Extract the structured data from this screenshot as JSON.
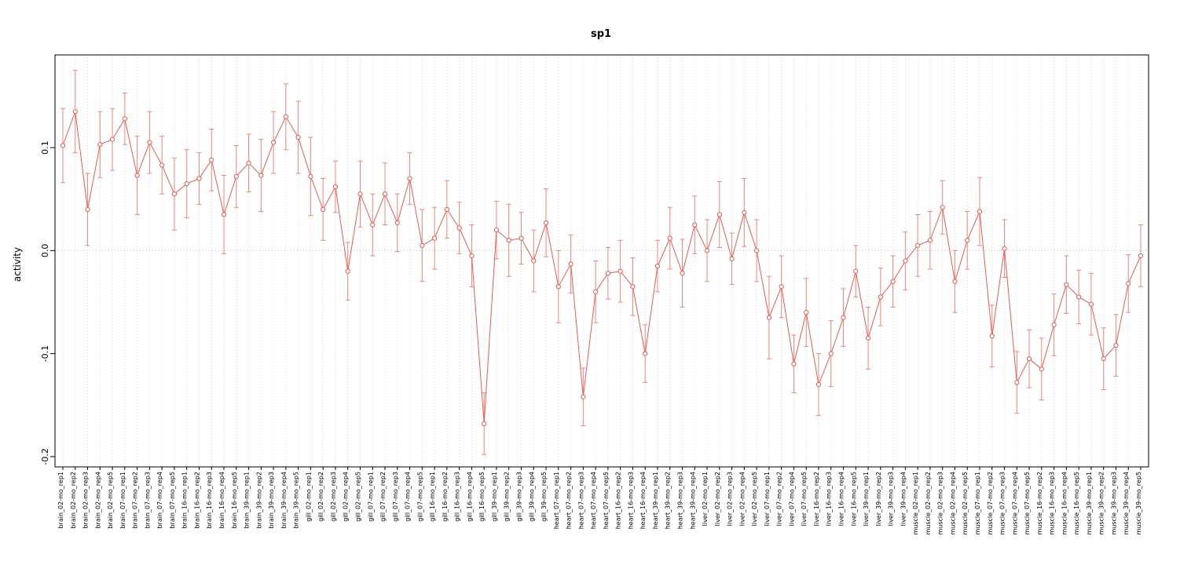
{
  "chart_data": {
    "type": "line",
    "title": "sp1",
    "xlabel": "",
    "ylabel": "activity",
    "ylim": [
      -0.21,
      0.19
    ],
    "yticks": [
      -0.2,
      -0.1,
      0.0,
      0.1
    ],
    "ytick_labels": [
      "-0.2",
      "-0.1",
      "0.0",
      "0.1"
    ],
    "grid": "vertical-dotted-per-category",
    "zero_line": 0.0,
    "legend_position": "none",
    "colors": {
      "series": "#ef5a50",
      "error_bar": "#f5847c",
      "grid": "#d8d8d8",
      "zero_line": "#c8c8c8",
      "axis": "#000000",
      "background": "#ffffff"
    },
    "categories": [
      "brain_02-mo_rep1",
      "brain_02-mo_rep2",
      "brain_02-mo_rep3",
      "brain_02-mo_rep4",
      "brain_02-mo_rep5",
      "brain_07-mo_rep1",
      "brain_07-mo_rep2",
      "brain_07-mo_rep3",
      "brain_07-mo_rep4",
      "brain_07-mo_rep5",
      "brain_16-mo_rep1",
      "brain_16-mo_rep2",
      "brain_16-mo_rep3",
      "brain_16-mo_rep4",
      "brain_16-mo_rep5",
      "brain_39-mo_rep1",
      "brain_39-mo_rep2",
      "brain_39-mo_rep3",
      "brain_39-mo_rep4",
      "brain_39-mo_rep5",
      "gill_02-mo_rep1",
      "gill_02-mo_rep2",
      "gill_02-mo_rep3",
      "gill_02-mo_rep4",
      "gill_02-mo_rep5",
      "gill_07-mo_rep1",
      "gill_07-mo_rep2",
      "gill_07-mo_rep3",
      "gill_07-mo_rep4",
      "gill_07-mo_rep5",
      "gill_16-mo_rep1",
      "gill_16-mo_rep2",
      "gill_16-mo_rep3",
      "gill_16-mo_rep4",
      "gill_16-mo_rep5",
      "gill_39-mo_rep1",
      "gill_39-mo_rep2",
      "gill_39-mo_rep3",
      "gill_39-mo_rep4",
      "gill_39-mo_rep5",
      "heart_07-mo_rep1",
      "heart_07-mo_rep2",
      "heart_07-mo_rep3",
      "heart_07-mo_rep4",
      "heart_07-mo_rep5",
      "heart_16-mo_rep2",
      "heart_16-mo_rep3",
      "heart_16-mo_rep4",
      "heart_39-mo_rep1",
      "heart_39-mo_rep2",
      "heart_39-mo_rep3",
      "heart_39-mo_rep4",
      "liver_02-mo_rep1",
      "liver_02-mo_rep2",
      "liver_02-mo_rep3",
      "liver_02-mo_rep4",
      "liver_02-mo_rep5",
      "liver_07-mo_rep1",
      "liver_07-mo_rep2",
      "liver_07-mo_rep4",
      "liver_07-mo_rep5",
      "liver_16-mo_rep2",
      "liver_16-mo_rep3",
      "liver_16-mo_rep4",
      "liver_16-mo_rep5",
      "liver_39-mo_rep1",
      "liver_39-mo_rep2",
      "liver_39-mo_rep3",
      "liver_39-mo_rep4",
      "muscle_02-mo_rep1",
      "muscle_02-mo_rep2",
      "muscle_02-mo_rep3",
      "muscle_02-mo_rep4",
      "muscle_02-mo_rep5",
      "muscle_07-mo_rep1",
      "muscle_07-mo_rep2",
      "muscle_07-mo_rep3",
      "muscle_07-mo_rep4",
      "muscle_07-mo_rep5",
      "muscle_16-mo_rep2",
      "muscle_16-mo_rep3",
      "muscle_16-mo_rep4",
      "muscle_16-mo_rep5",
      "muscle_39-mo_rep1",
      "muscle_39-mo_rep2",
      "muscle_39-mo_rep3",
      "muscle_39-mo_rep4",
      "muscle_39-mo_rep5"
    ],
    "values": [
      0.102,
      0.135,
      0.04,
      0.103,
      0.108,
      0.128,
      0.073,
      0.105,
      0.083,
      0.055,
      0.065,
      0.07,
      0.088,
      0.035,
      0.072,
      0.085,
      0.073,
      0.105,
      0.13,
      0.11,
      0.072,
      0.04,
      0.062,
      -0.02,
      0.055,
      0.025,
      0.055,
      0.027,
      0.07,
      0.005,
      0.012,
      0.04,
      0.022,
      -0.005,
      -0.168,
      0.02,
      0.01,
      0.012,
      -0.01,
      0.027,
      -0.035,
      -0.013,
      -0.142,
      -0.04,
      -0.022,
      -0.02,
      -0.035,
      -0.1,
      -0.015,
      0.012,
      -0.022,
      0.025,
      0.0,
      0.035,
      -0.008,
      0.037,
      0.0,
      -0.065,
      -0.035,
      -0.11,
      -0.06,
      -0.13,
      -0.1,
      -0.065,
      -0.02,
      -0.085,
      -0.045,
      -0.03,
      -0.01,
      0.005,
      0.01,
      0.042,
      -0.03,
      0.01,
      0.038,
      -0.083,
      0.002,
      -0.128,
      -0.105,
      -0.115,
      -0.072,
      -0.033,
      -0.045,
      -0.052,
      -0.105,
      -0.092,
      -0.032,
      -0.005
    ],
    "errors": [
      0.036,
      0.04,
      0.035,
      0.032,
      0.03,
      0.025,
      0.038,
      0.03,
      0.028,
      0.035,
      0.033,
      0.025,
      0.03,
      0.038,
      0.03,
      0.028,
      0.035,
      0.03,
      0.032,
      0.035,
      0.038,
      0.03,
      0.025,
      0.028,
      0.032,
      0.03,
      0.03,
      0.028,
      0.025,
      0.035,
      0.03,
      0.028,
      0.025,
      0.03,
      0.03,
      0.028,
      0.035,
      0.025,
      0.03,
      0.033,
      0.035,
      0.028,
      0.028,
      0.03,
      0.025,
      0.03,
      0.028,
      0.028,
      0.025,
      0.03,
      0.033,
      0.028,
      0.03,
      0.032,
      0.025,
      0.033,
      0.03,
      0.04,
      0.03,
      0.028,
      0.033,
      0.03,
      0.032,
      0.028,
      0.025,
      0.03,
      0.028,
      0.025,
      0.028,
      0.03,
      0.028,
      0.026,
      0.03,
      0.028,
      0.033,
      0.03,
      0.028,
      0.03,
      0.028,
      0.03,
      0.03,
      0.028,
      0.026,
      0.03,
      0.03,
      0.03,
      0.028,
      0.03
    ]
  }
}
